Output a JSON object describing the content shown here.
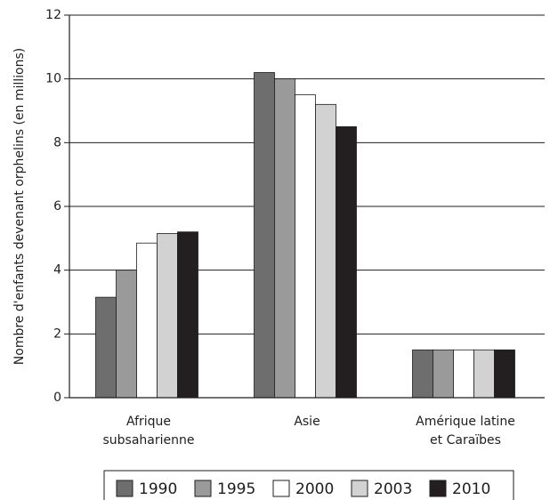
{
  "chart_data": {
    "type": "bar",
    "title": "",
    "xlabel": "",
    "ylabel": "Nombre d'enfants devenant orphelins (en millions)",
    "ylim": [
      0,
      12
    ],
    "yticks": [
      0,
      2,
      4,
      6,
      8,
      10,
      12
    ],
    "grid": true,
    "legend_position": "bottom",
    "categories": [
      [
        "Afrique",
        "subsaharienne"
      ],
      [
        "Asie"
      ],
      [
        "Amérique latine",
        "et Caraïbes"
      ]
    ],
    "series": [
      {
        "name": "1990",
        "color": "#6e6e6e",
        "values": [
          3.15,
          10.2,
          1.5
        ]
      },
      {
        "name": "1995",
        "color": "#9a9a9a",
        "values": [
          4.0,
          10.0,
          1.5
        ]
      },
      {
        "name": "2000",
        "color": "#ffffff",
        "values": [
          4.85,
          9.5,
          1.5
        ]
      },
      {
        "name": "2003",
        "color": "#d2d2d2",
        "values": [
          5.15,
          9.2,
          1.5
        ]
      },
      {
        "name": "2010",
        "color": "#231f20",
        "values": [
          5.2,
          8.5,
          1.5
        ]
      }
    ]
  }
}
